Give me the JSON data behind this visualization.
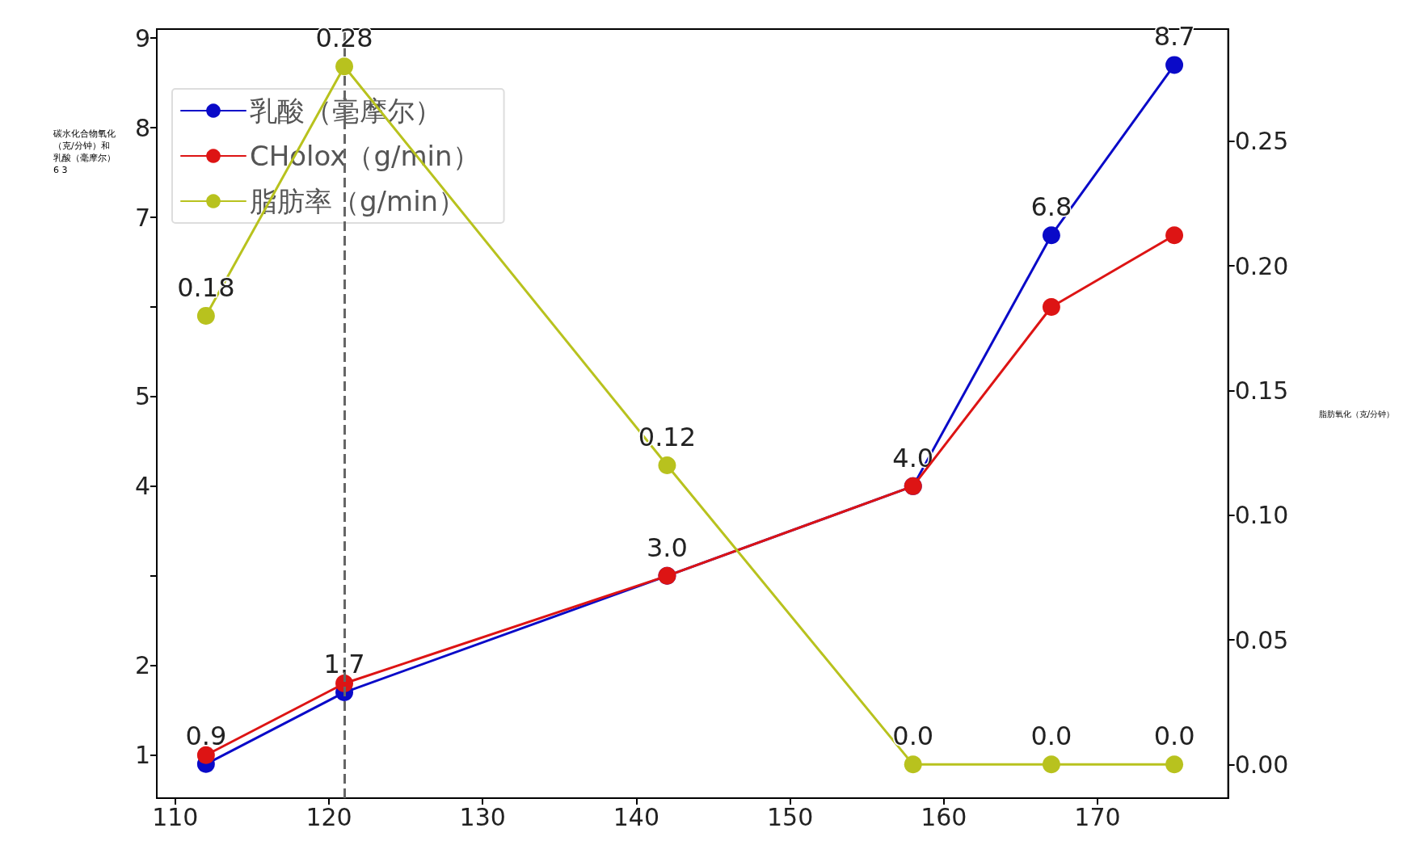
{
  "chart_data": {
    "type": "line",
    "ylabel": "碳水化合物氧化（克/分钟）和乳酸（毫摩尔）6 3",
    "y2label": "脂肪氧化（克/分钟）",
    "x": [
      112,
      121,
      142,
      158,
      167,
      175
    ],
    "series": [
      {
        "name": "乳酸（毫摩尔）",
        "color": "#0a0ac8",
        "values": [
          0.9,
          1.7,
          3.0,
          4.0,
          6.8,
          8.7
        ],
        "value_labels": [
          "0.9",
          "1.7",
          "3.0",
          "4.0",
          "6.8",
          "8.7"
        ]
      },
      {
        "name": "CHolox（g/min）",
        "color": "#dd1414",
        "values": [
          1.0,
          1.8,
          3.0,
          4.0,
          6.0,
          6.8
        ]
      },
      {
        "name": "脂肪率（g/min）",
        "color": "#b8c21e",
        "axis": "y2",
        "values": [
          0.18,
          0.28,
          0.12,
          0.0,
          0.0,
          0.0
        ],
        "value_labels": [
          "0.18",
          "0.28",
          "0.12",
          "0.0",
          "0.0",
          "0.0"
        ]
      }
    ],
    "xlim": [
      108.8,
      178.5
    ],
    "xticks": [
      110,
      120,
      130,
      140,
      150,
      160,
      170
    ],
    "ylim": [
      0.52,
      9.1
    ],
    "yticks": [
      1,
      2,
      {
        "value": 3,
        "label": null
      },
      4,
      5,
      {
        "value": 6,
        "label": null
      },
      7,
      8,
      9
    ],
    "y2lim": [
      -0.0135,
      0.295
    ],
    "y2ticks": [
      {
        "value": 0,
        "label": "0.00"
      },
      0.05,
      {
        "value": 0.1,
        "label": "0.10"
      },
      0.15,
      {
        "value": 0.2,
        "label": "0.20"
      },
      0.25
    ],
    "ref_lines": [
      {
        "axis": "x",
        "value": 121,
        "color": "#666666",
        "line_style": "dashed"
      }
    ],
    "grid": false,
    "legend": "top left",
    "marker": "circle",
    "line_style": "solid"
  }
}
